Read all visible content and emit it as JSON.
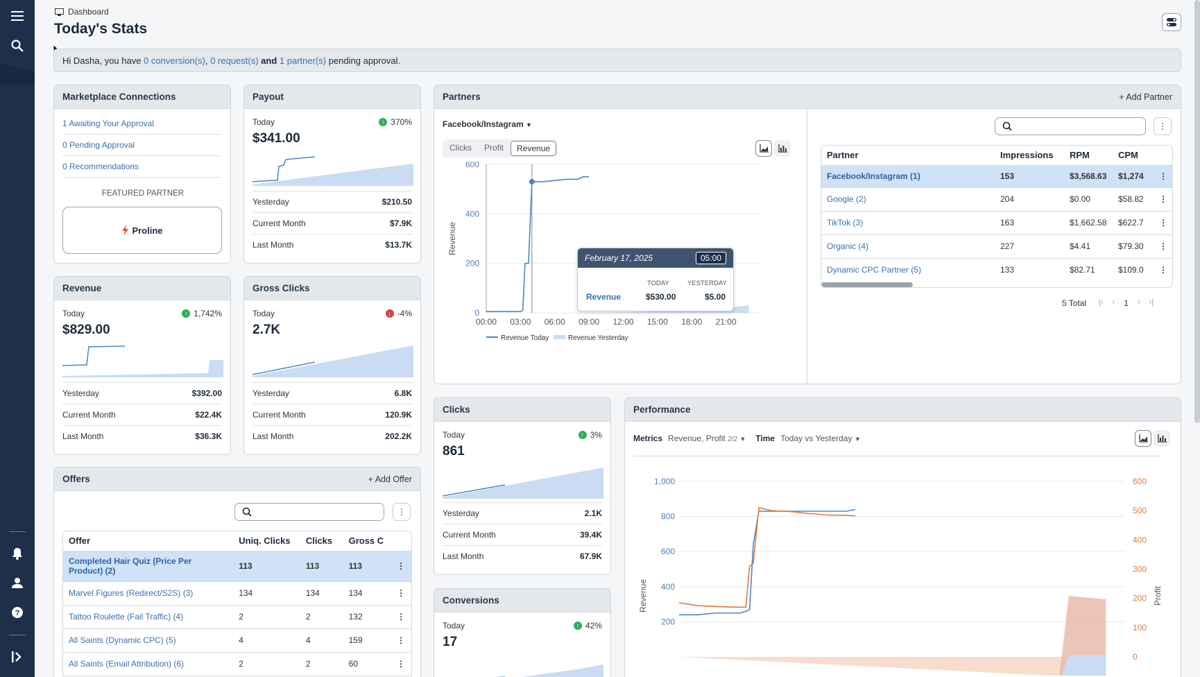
{
  "breadcrumb": "Dashboard",
  "page_title": "Today's Stats",
  "alert": {
    "pre": "Hi Dasha, you have ",
    "conversions": "0 conversion(s)",
    "sep1": ", ",
    "requests": "0 request(s)",
    "and": " and ",
    "partners": "1 partner(s)",
    "post": " pending approval."
  },
  "marketplace": {
    "title": "Marketplace Connections",
    "links": [
      "1 Awaiting Your Approval",
      "0 Pending Approval",
      "0 Recommendations"
    ],
    "featured_label": "FEATURED PARTNER",
    "featured_name": "Proline"
  },
  "payout": {
    "title": "Payout",
    "today_label": "Today",
    "pct": "370%",
    "value": "$341.00",
    "rows": [
      {
        "label": "Yesterday",
        "value": "$210.50"
      },
      {
        "label": "Current Month",
        "value": "$7.9K"
      },
      {
        "label": "Last Month",
        "value": "$13.7K"
      }
    ]
  },
  "revenue": {
    "title": "Revenue",
    "today_label": "Today",
    "pct": "1,742%",
    "value": "$829.00",
    "rows": [
      {
        "label": "Yesterday",
        "value": "$392.00"
      },
      {
        "label": "Current Month",
        "value": "$22.4K"
      },
      {
        "label": "Last Month",
        "value": "$36.3K"
      }
    ]
  },
  "gross_clicks": {
    "title": "Gross Clicks",
    "today_label": "Today",
    "pct": "-4%",
    "value": "2.7K",
    "rows": [
      {
        "label": "Yesterday",
        "value": "6.8K"
      },
      {
        "label": "Current Month",
        "value": "120.9K"
      },
      {
        "label": "Last Month",
        "value": "202.2K"
      }
    ]
  },
  "clicks": {
    "title": "Clicks",
    "today_label": "Today",
    "pct": "3%",
    "value": "861",
    "rows": [
      {
        "label": "Yesterday",
        "value": "2.1K"
      },
      {
        "label": "Current Month",
        "value": "39.4K"
      },
      {
        "label": "Last Month",
        "value": "67.9K"
      }
    ]
  },
  "conversions": {
    "title": "Conversions",
    "today_label": "Today",
    "pct": "42%",
    "value": "17"
  },
  "offers": {
    "title": "Offers",
    "add_label": "Add Offer",
    "columns": [
      "Offer",
      "Uniq. Clicks",
      "Clicks",
      "Gross C"
    ],
    "rows": [
      {
        "name": "Completed Hair Quiz (Price Per Product) (2)",
        "uniq": "113",
        "clicks": "113",
        "gross": "113"
      },
      {
        "name": "Marvel Figures (Redirect/S2S) (3)",
        "uniq": "134",
        "clicks": "134",
        "gross": "134"
      },
      {
        "name": "Tattoo Roulette (Fail Traffic) (4)",
        "uniq": "2",
        "clicks": "2",
        "gross": "132"
      },
      {
        "name": "All Saints (Dynamic CPC) (5)",
        "uniq": "4",
        "clicks": "4",
        "gross": "159"
      },
      {
        "name": "All Saints (Email Attribution) (6)",
        "uniq": "2",
        "clicks": "2",
        "gross": "60"
      }
    ]
  },
  "partners": {
    "title": "Partners",
    "add_label": "Add Partner",
    "source": "Facebook/Instagram",
    "tabs": [
      "Clicks",
      "Profit",
      "Revenue"
    ],
    "active_tab": "Revenue",
    "columns": [
      "Partner",
      "Impressions",
      "RPM",
      "CPM"
    ],
    "rows": [
      {
        "name": "Facebook/Instagram (1)",
        "impressions": "153",
        "rpm": "$3,568.63",
        "cpm": "$1,274"
      },
      {
        "name": "Google (2)",
        "impressions": "204",
        "rpm": "$0.00",
        "cpm": "$58.82"
      },
      {
        "name": "TikTok (3)",
        "impressions": "163",
        "rpm": "$1,662.58",
        "cpm": "$622.7"
      },
      {
        "name": "Organic (4)",
        "impressions": "227",
        "rpm": "$4.41",
        "cpm": "$79.30"
      },
      {
        "name": "Dynamic CPC Partner (5)",
        "impressions": "133",
        "rpm": "$82.71",
        "cpm": "$109.0"
      }
    ],
    "total": "5 Total",
    "page": "1",
    "tooltip": {
      "date": "February 17, 2025",
      "time": "05:00",
      "col_today": "TODAY",
      "col_yesterday": "YESTERDAY",
      "label": "Revenue",
      "today": "$530.00",
      "yesterday": "$5.00"
    }
  },
  "performance": {
    "title": "Performance",
    "metrics_label": "Metrics",
    "metrics_value": "Revenue, Profit",
    "metrics_count": "2/2",
    "time_label": "Time",
    "time_value": "Today vs Yesterday"
  },
  "chart_data": [
    {
      "type": "line",
      "title": "",
      "ylabel": "Revenue",
      "ylim": [
        0,
        600
      ],
      "x_ticks": [
        "00:00",
        "03:00",
        "06:00",
        "09:00",
        "12:00",
        "15:00",
        "18:00",
        "21:00"
      ],
      "y_ticks": [
        "0",
        "200",
        "400",
        "600"
      ],
      "series": [
        {
          "name": "Revenue Today",
          "x": [
            0,
            1,
            2,
            2.5,
            3,
            3.2,
            3.4,
            3.7,
            4,
            4.2,
            4.6,
            5,
            6,
            7,
            8,
            8.5,
            9
          ],
          "y": [
            5,
            5,
            5,
            5,
            5,
            10,
            200,
            200,
            530,
            530,
            530,
            530,
            535,
            540,
            540,
            550,
            550
          ]
        },
        {
          "name": "Revenue Yesterday",
          "x": [
            0,
            3,
            6,
            9,
            12,
            14,
            15,
            18,
            21,
            23
          ],
          "y": [
            0,
            0,
            0,
            0,
            2,
            5,
            10,
            15,
            20,
            30
          ]
        }
      ]
    },
    {
      "type": "line",
      "title": "",
      "ylabel": "Revenue",
      "y2label": "Profit",
      "ylim": [
        0,
        1000
      ],
      "y2lim": [
        0,
        600
      ],
      "y_ticks": [
        "200",
        "400",
        "600",
        "800",
        "1,000"
      ],
      "y2_ticks": [
        "0",
        "100",
        "200",
        "300",
        "400",
        "500",
        "600"
      ],
      "series": [
        {
          "name": "Revenue",
          "x": [
            0,
            1,
            2,
            3,
            3.3,
            3.6,
            3.8,
            4,
            4.3,
            5,
            6,
            7,
            8,
            9,
            9.5
          ],
          "y": [
            240,
            240,
            250,
            250,
            250,
            260,
            270,
            640,
            830,
            830,
            830,
            830,
            830,
            830,
            840
          ]
        },
        {
          "name": "Profit",
          "x": [
            0,
            0.5,
            1,
            2,
            3,
            3.3,
            3.6,
            3.8,
            4,
            4.3,
            5,
            6,
            7,
            8,
            9,
            9.5
          ],
          "y": [
            185,
            180,
            175,
            172,
            170,
            170,
            170,
            310,
            320,
            510,
            500,
            497,
            490,
            485,
            484,
            482
          ]
        }
      ]
    }
  ]
}
